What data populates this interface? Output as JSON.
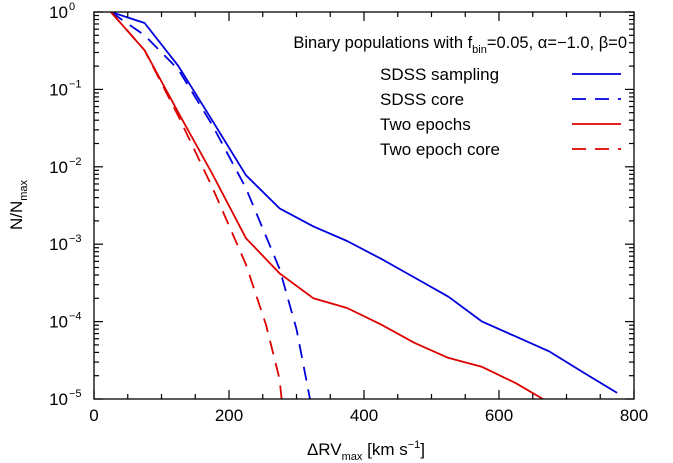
{
  "chart_data": {
    "type": "line",
    "annotation": {
      "prefix": "Binary populations with f",
      "sub": "bin",
      "suffix": "=0.05, α=−1.0, β=0"
    },
    "xlabel": {
      "prefix": "ΔRV",
      "sub": "max",
      "suffix": " [km s",
      "sup": "−1",
      "end": "]"
    },
    "ylabel": {
      "prefix": "N/N",
      "sub": "max"
    },
    "xlim": [
      0,
      800
    ],
    "ylim": [
      1e-05,
      1
    ],
    "yscale": "log",
    "xticks": [
      0,
      200,
      400,
      600,
      800
    ],
    "xtick_labels": [
      "0",
      "200",
      "400",
      "600",
      "800"
    ],
    "yticks": [
      {
        "value": 1,
        "base": "10",
        "exp": "0"
      },
      {
        "value": 0.1,
        "base": "10",
        "exp": "−1"
      },
      {
        "value": 0.01,
        "base": "10",
        "exp": "−2"
      },
      {
        "value": 0.001,
        "base": "10",
        "exp": "−3"
      },
      {
        "value": 0.0001,
        "base": "10",
        "exp": "−4"
      },
      {
        "value": 1e-05,
        "base": "10",
        "exp": "−5"
      }
    ],
    "legend_position": "top-right",
    "series": [
      {
        "name": "SDSS sampling",
        "color": "#0000dd",
        "dash": "solid",
        "x": [
          25,
          75,
          125,
          175,
          225,
          275,
          325,
          375,
          425,
          475,
          525,
          575,
          625,
          675,
          725,
          775
        ],
        "y": [
          1.0,
          0.72,
          0.2,
          0.04,
          0.0078,
          0.0029,
          0.0017,
          0.0011,
          0.00065,
          0.00037,
          0.00021,
          0.0001,
          6.4e-05,
          4.1e-05,
          2.2e-05,
          1.2e-05
        ]
      },
      {
        "name": "SDSS core",
        "color": "#0000dd",
        "dash": "dashed",
        "x": [
          25,
          75,
          125,
          175,
          225,
          275,
          300,
          320
        ],
        "y": [
          1.0,
          0.5,
          0.18,
          0.035,
          0.0053,
          0.00048,
          8e-05,
          1e-05
        ]
      },
      {
        "name": "Two epochs",
        "color": "#dd0000",
        "dash": "solid",
        "x": [
          25,
          75,
          125,
          175,
          225,
          275,
          325,
          375,
          425,
          475,
          525,
          575,
          625,
          665
        ],
        "y": [
          1.0,
          0.32,
          0.05,
          0.0082,
          0.0012,
          0.00042,
          0.0002,
          0.00015,
          9.2e-05,
          5.3e-05,
          3.4e-05,
          2.6e-05,
          1.6e-05,
          1e-05
        ]
      },
      {
        "name": "Two epoch core",
        "color": "#dd0000",
        "dash": "dashed",
        "x": [
          25,
          75,
          125,
          175,
          225,
          255,
          275,
          278
        ],
        "y": [
          1.0,
          0.32,
          0.045,
          0.0055,
          0.00055,
          9e-05,
          1.8e-05,
          1e-05
        ]
      }
    ]
  }
}
